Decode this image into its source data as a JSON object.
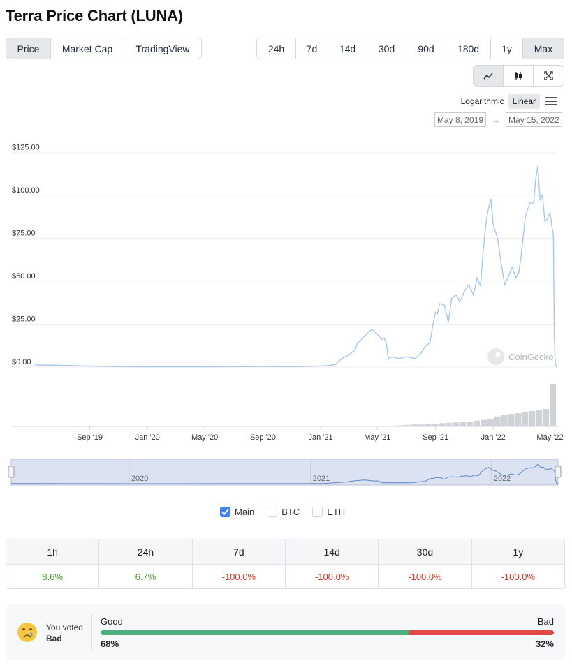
{
  "page_title": "Terra Price Chart (LUNA)",
  "view_tabs": [
    {
      "label": "Price",
      "active": true
    },
    {
      "label": "Market Cap",
      "active": false
    },
    {
      "label": "TradingView",
      "active": false
    }
  ],
  "range_tabs": [
    {
      "label": "24h",
      "active": false
    },
    {
      "label": "7d",
      "active": false
    },
    {
      "label": "14d",
      "active": false
    },
    {
      "label": "30d",
      "active": false
    },
    {
      "label": "90d",
      "active": false
    },
    {
      "label": "180d",
      "active": false
    },
    {
      "label": "1y",
      "active": false
    },
    {
      "label": "Max",
      "active": true
    }
  ],
  "chart_type_tabs": [
    {
      "icon": "line-chart-icon",
      "active": true
    },
    {
      "icon": "candlestick-icon",
      "active": false
    },
    {
      "icon": "fullscreen-icon",
      "active": false
    }
  ],
  "scale": {
    "options": [
      "Logarithmic",
      "Linear"
    ],
    "active": "Linear"
  },
  "date_range": {
    "from": "May 8, 2019",
    "to": "May 15, 2022"
  },
  "watermark": "CoinGecko",
  "colors": {
    "line": "#a9c7ea",
    "volume": "#cfd3d8",
    "navigator_fill": "#dbe2f1",
    "positive": "#4a9d2a",
    "negative": "#d0392b",
    "accent": "#3b82f6"
  },
  "chart_data": {
    "type": "line",
    "series": [
      {
        "name": "Main",
        "x": [
          "2019-05-08",
          "2019-07-01",
          "2019-09-01",
          "2019-11-01",
          "2020-01-01",
          "2020-03-01",
          "2020-05-01",
          "2020-07-01",
          "2020-09-01",
          "2020-11-01",
          "2020-12-15",
          "2021-01-15",
          "2021-02-01",
          "2021-02-15",
          "2021-03-01",
          "2021-03-15",
          "2021-03-20",
          "2021-04-01",
          "2021-04-10",
          "2021-04-20",
          "2021-05-01",
          "2021-05-10",
          "2021-05-15",
          "2021-05-20",
          "2021-05-24",
          "2021-06-01",
          "2021-06-15",
          "2021-07-01",
          "2021-07-20",
          "2021-08-01",
          "2021-08-10",
          "2021-08-20",
          "2021-08-26",
          "2021-09-01",
          "2021-09-05",
          "2021-09-10",
          "2021-09-20",
          "2021-09-28",
          "2021-10-05",
          "2021-10-15",
          "2021-10-22",
          "2021-11-01",
          "2021-11-10",
          "2021-11-20",
          "2021-11-28",
          "2021-12-05",
          "2021-12-10",
          "2021-12-15",
          "2021-12-20",
          "2021-12-27",
          "2022-01-01",
          "2022-01-10",
          "2022-01-18",
          "2022-01-25",
          "2022-02-01",
          "2022-02-10",
          "2022-02-18",
          "2022-02-24",
          "2022-03-01",
          "2022-03-10",
          "2022-03-20",
          "2022-03-27",
          "2022-04-01",
          "2022-04-05",
          "2022-04-10",
          "2022-04-15",
          "2022-04-20",
          "2022-04-25",
          "2022-05-01",
          "2022-05-05",
          "2022-05-08",
          "2022-05-10",
          "2022-05-12",
          "2022-05-15"
        ],
        "values": [
          1.3,
          1.0,
          0.6,
          0.3,
          0.2,
          0.2,
          0.2,
          0.3,
          0.35,
          0.3,
          0.5,
          0.8,
          1.5,
          5,
          7,
          10,
          14,
          17,
          20,
          22,
          19,
          16,
          17,
          14,
          5,
          6,
          5,
          6,
          5,
          8,
          12,
          14,
          24,
          32,
          31,
          37,
          36,
          26,
          40,
          42,
          38,
          44,
          48,
          42,
          52,
          47,
          65,
          80,
          90,
          98,
          83,
          75,
          60,
          48,
          52,
          58,
          52,
          55,
          65,
          88,
          96,
          95,
          110,
          117,
          97,
          100,
          85,
          86,
          90,
          82,
          77,
          20,
          2,
          0.00017
        ]
      }
    ],
    "volume": [
      0,
      0,
      0,
      0,
      0,
      0,
      0,
      0,
      0,
      0,
      1,
      2,
      3,
      3,
      4,
      5,
      6,
      7,
      8,
      9,
      10,
      12,
      14,
      16,
      22,
      26,
      28,
      30,
      32,
      35,
      38,
      40,
      100
    ],
    "xlabel": "",
    "ylabel": "",
    "y_ticks": [
      "$0.00",
      "$25.00",
      "$50.00",
      "$75.00",
      "$100.00",
      "$125.00"
    ],
    "y_tick_values": [
      0,
      25,
      50,
      75,
      100,
      125
    ],
    "ylim": [
      0,
      130
    ],
    "x_ticks": [
      "Sep '19",
      "Jan '20",
      "May '20",
      "Sep '20",
      "Jan '21",
      "May '21",
      "Sep '21",
      "Jan '22",
      "May '22"
    ],
    "x_tick_dates": [
      "2019-09-01",
      "2020-01-01",
      "2020-05-01",
      "2020-09-01",
      "2021-01-01",
      "2021-05-01",
      "2021-09-01",
      "2022-01-01",
      "2022-05-01"
    ],
    "navigator_ticks": [
      "2020",
      "2021",
      "2022"
    ],
    "navigator_tick_dates": [
      "2020-01-01",
      "2021-01-01",
      "2022-01-01"
    ],
    "grid": true
  },
  "legend": [
    {
      "label": "Main",
      "checked": true
    },
    {
      "label": "BTC",
      "checked": false
    },
    {
      "label": "ETH",
      "checked": false
    }
  ],
  "price_change": {
    "headers": [
      "1h",
      "24h",
      "7d",
      "14d",
      "30d",
      "1y"
    ],
    "values": [
      {
        "text": "8.6%",
        "trend": "up"
      },
      {
        "text": "6.7%",
        "trend": "up"
      },
      {
        "text": "-100.0%",
        "trend": "down"
      },
      {
        "text": "-100.0%",
        "trend": "down"
      },
      {
        "text": "-100.0%",
        "trend": "down"
      },
      {
        "text": "-100.0%",
        "trend": "down"
      }
    ]
  },
  "vote": {
    "line1": "You voted",
    "line2": "Bad",
    "good_label": "Good",
    "bad_label": "Bad",
    "good_pct": "68%",
    "bad_pct": "32%",
    "good_value": 68,
    "face_icon": "sad-face-icon"
  }
}
